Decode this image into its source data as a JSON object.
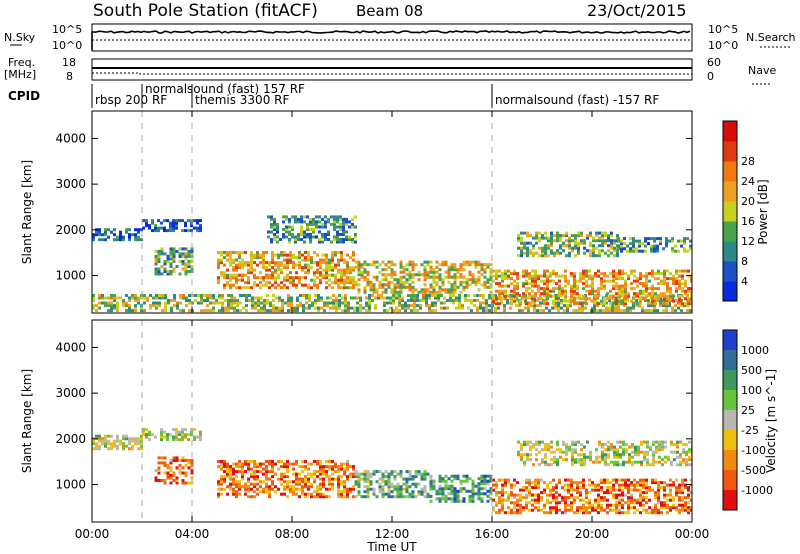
{
  "header": {
    "title": "South Pole Station (fitACF)",
    "beam": "Beam 08",
    "date": "23/Oct/2015"
  },
  "status_panels": {
    "nsky_label": "N.Sky",
    "nsky_ticks": [
      "10^5",
      "10^0"
    ],
    "nsearch_label": "N.Search",
    "nsearch_ticks": [
      "10^5",
      "10^0"
    ],
    "freq_label": "Freq.",
    "freq_unit": "[MHz]",
    "freq_ticks": [
      "18",
      "8"
    ],
    "nave_label": "Nave",
    "nave_ticks": [
      "60",
      "0"
    ],
    "cpid_label": "CPID",
    "cpid_entries": [
      {
        "text": "rbsp 200 RF",
        "start_hour": 0
      },
      {
        "text": "normalsound (fast) 157 RF",
        "start_hour": 2
      },
      {
        "text": "themis 3300 RF",
        "start_hour": 4
      },
      {
        "text": "normalsound (fast) -157 RF",
        "start_hour": 16
      }
    ]
  },
  "chart_data": [
    {
      "type": "heatmap",
      "name": "Power",
      "ylabel": "Slant Range [km]",
      "ylim": [
        180,
        4600
      ],
      "yticks": [
        1000,
        2000,
        3000,
        4000
      ],
      "xlim": [
        0,
        24
      ],
      "colorbar_label": "Power [dB]",
      "colorbar_ticks": [
        4,
        8,
        12,
        16,
        20,
        24,
        28
      ],
      "colorbar_colors": [
        "#0a2adf",
        "#1e50c8",
        "#2f8a86",
        "#4aa34a",
        "#c7d21e",
        "#f0a020",
        "#f07a10",
        "#e23a10",
        "#d80a0a"
      ],
      "echo_regions": [
        {
          "x0": 0.0,
          "x1": 2.0,
          "r0": 1750,
          "r1": 2000,
          "level": 0.15
        },
        {
          "x0": 0.0,
          "x1": 24.0,
          "r0": 200,
          "r1": 550,
          "level": 0.45
        },
        {
          "x0": 2.0,
          "x1": 4.3,
          "r0": 1950,
          "r1": 2200,
          "level": 0.1
        },
        {
          "x0": 2.5,
          "x1": 4.0,
          "r0": 1000,
          "r1": 1600,
          "level": 0.35
        },
        {
          "x0": 5.0,
          "x1": 10.5,
          "r0": 700,
          "r1": 1500,
          "level": 0.65
        },
        {
          "x0": 7.0,
          "x1": 10.5,
          "r0": 1700,
          "r1": 2300,
          "level": 0.3
        },
        {
          "x0": 10.5,
          "x1": 16.0,
          "r0": 600,
          "r1": 1300,
          "level": 0.55
        },
        {
          "x0": 16.0,
          "x1": 24.0,
          "r0": 350,
          "r1": 1100,
          "level": 0.65
        },
        {
          "x0": 17.0,
          "x1": 21.0,
          "r0": 1400,
          "r1": 1900,
          "level": 0.4
        },
        {
          "x0": 21.0,
          "x1": 24.0,
          "r0": 1500,
          "r1": 1800,
          "level": 0.3
        }
      ]
    },
    {
      "type": "heatmap",
      "name": "Velocity",
      "ylabel": "Slant Range [km]",
      "ylim": [
        180,
        4600
      ],
      "yticks": [
        1000,
        2000,
        3000,
        4000
      ],
      "xlim": [
        0,
        24
      ],
      "xticks": [
        "00:00",
        "04:00",
        "08:00",
        "12:00",
        "16:00",
        "20:00",
        "00:00"
      ],
      "xlabel": "Time UT",
      "colorbar_label": "Velocity [m s^-1]",
      "colorbar_ticks": [
        1000,
        500,
        100,
        25,
        -25,
        -100,
        -500,
        -1000
      ],
      "colorbar_colors": [
        "#1e3fcf",
        "#2f6e9a",
        "#3e9a5c",
        "#66c63a",
        "#b8b8b0",
        "#f0c010",
        "#f08a10",
        "#f05a10",
        "#e01010"
      ],
      "echo_regions": [
        {
          "x0": 0.0,
          "x1": 2.0,
          "r0": 1750,
          "r1": 2050,
          "level": 0.5
        },
        {
          "x0": 2.0,
          "x1": 4.3,
          "r0": 1950,
          "r1": 2200,
          "level": 0.5
        },
        {
          "x0": 2.5,
          "x1": 4.0,
          "r0": 1000,
          "r1": 1600,
          "level": 0.8
        },
        {
          "x0": 5.0,
          "x1": 10.5,
          "r0": 700,
          "r1": 1500,
          "level": 0.8
        },
        {
          "x0": 10.5,
          "x1": 13.5,
          "r0": 700,
          "r1": 1300,
          "level": 0.35
        },
        {
          "x0": 13.5,
          "x1": 16.0,
          "r0": 600,
          "r1": 1200,
          "level": 0.25
        },
        {
          "x0": 16.0,
          "x1": 24.0,
          "r0": 350,
          "r1": 1100,
          "level": 0.8
        },
        {
          "x0": 17.0,
          "x1": 24.0,
          "r0": 1400,
          "r1": 1900,
          "level": 0.5
        }
      ]
    }
  ]
}
